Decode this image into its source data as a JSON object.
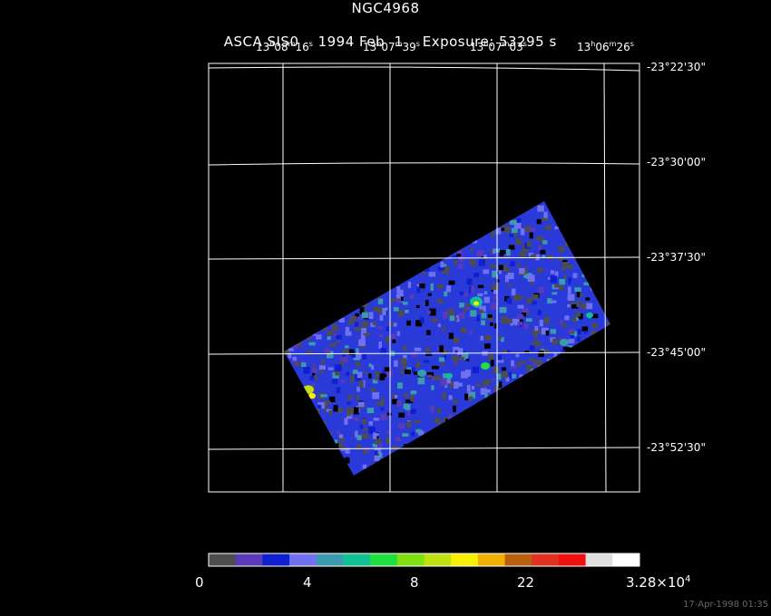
{
  "header": {
    "object": "NGC4968",
    "instrument": "ASCA SIS0",
    "date": "1994 Feb  1",
    "exposure": "Exposure: 53295 s"
  },
  "ra_ticks": [
    {
      "h": "13",
      "m": "08",
      "s": "16"
    },
    {
      "h": "13",
      "m": "07",
      "s": "39"
    },
    {
      "h": "13",
      "m": "07",
      "s": "03"
    },
    {
      "h": "13",
      "m": "06",
      "s": "26"
    }
  ],
  "dec_ticks": [
    "-23°22'30\"",
    "-23°30'00\"",
    "-23°37'30\"",
    "-23°45'00\"",
    "-23°52'30\""
  ],
  "colorbar": {
    "colors": [
      "#4d4d4d",
      "#5a3ab8",
      "#1020d0",
      "#7070f0",
      "#3a9ab0",
      "#10c090",
      "#20e040",
      "#80e010",
      "#c0e010",
      "#f8f000",
      "#f0b000",
      "#b86010",
      "#e03020",
      "#f01010",
      "#e0e0e0",
      "#ffffff"
    ],
    "labels": {
      "l0": "0",
      "l1": "4",
      "l2": "8",
      "l3": "22",
      "l4_mant": "3.28×10",
      "l4_exp": "4"
    }
  },
  "footer": {
    "timestamp": "17-Apr-1998 01:35"
  }
}
